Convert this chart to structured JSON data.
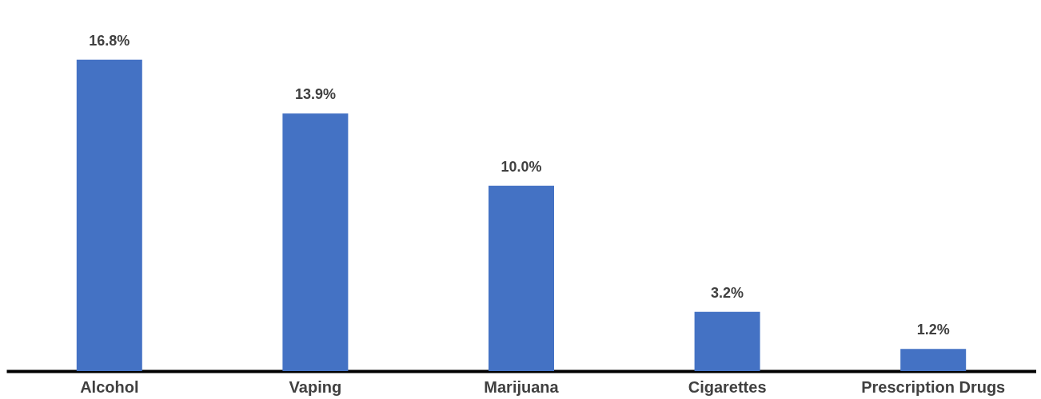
{
  "chart_data": {
    "type": "bar",
    "categories": [
      "Alcohol",
      "Vaping",
      "Marijuana",
      "Cigarettes",
      "Prescription Drugs"
    ],
    "values": [
      16.8,
      13.9,
      10.0,
      3.2,
      1.2
    ],
    "value_labels": [
      "16.8%",
      "13.9%",
      "10.0%",
      "3.2%",
      "1.2%"
    ],
    "color": "#4472c4"
  }
}
